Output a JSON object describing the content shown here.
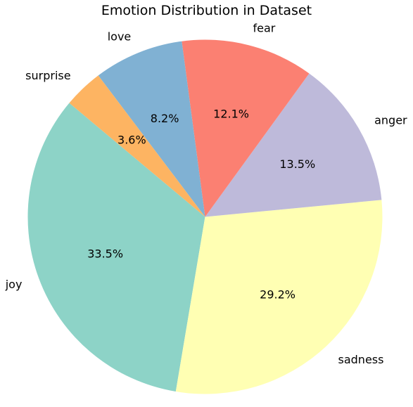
{
  "chart_data": {
    "type": "pie",
    "title": "Emotion Distribution in Dataset",
    "categories": [
      "joy",
      "sadness",
      "anger",
      "fear",
      "love",
      "surprise"
    ],
    "values": [
      33.5,
      29.2,
      13.5,
      12.1,
      8.2,
      3.6
    ],
    "value_labels": [
      "33.5%",
      "29.2%",
      "13.5%",
      "12.1%",
      "8.2%",
      "3.6%"
    ],
    "colors": [
      "#8dd3c7",
      "#ffffb3",
      "#bebada",
      "#fb8072",
      "#80b1d3",
      "#fdb462"
    ],
    "start_angle_deg": 140,
    "direction": "counterclockwise",
    "legend": "none"
  }
}
